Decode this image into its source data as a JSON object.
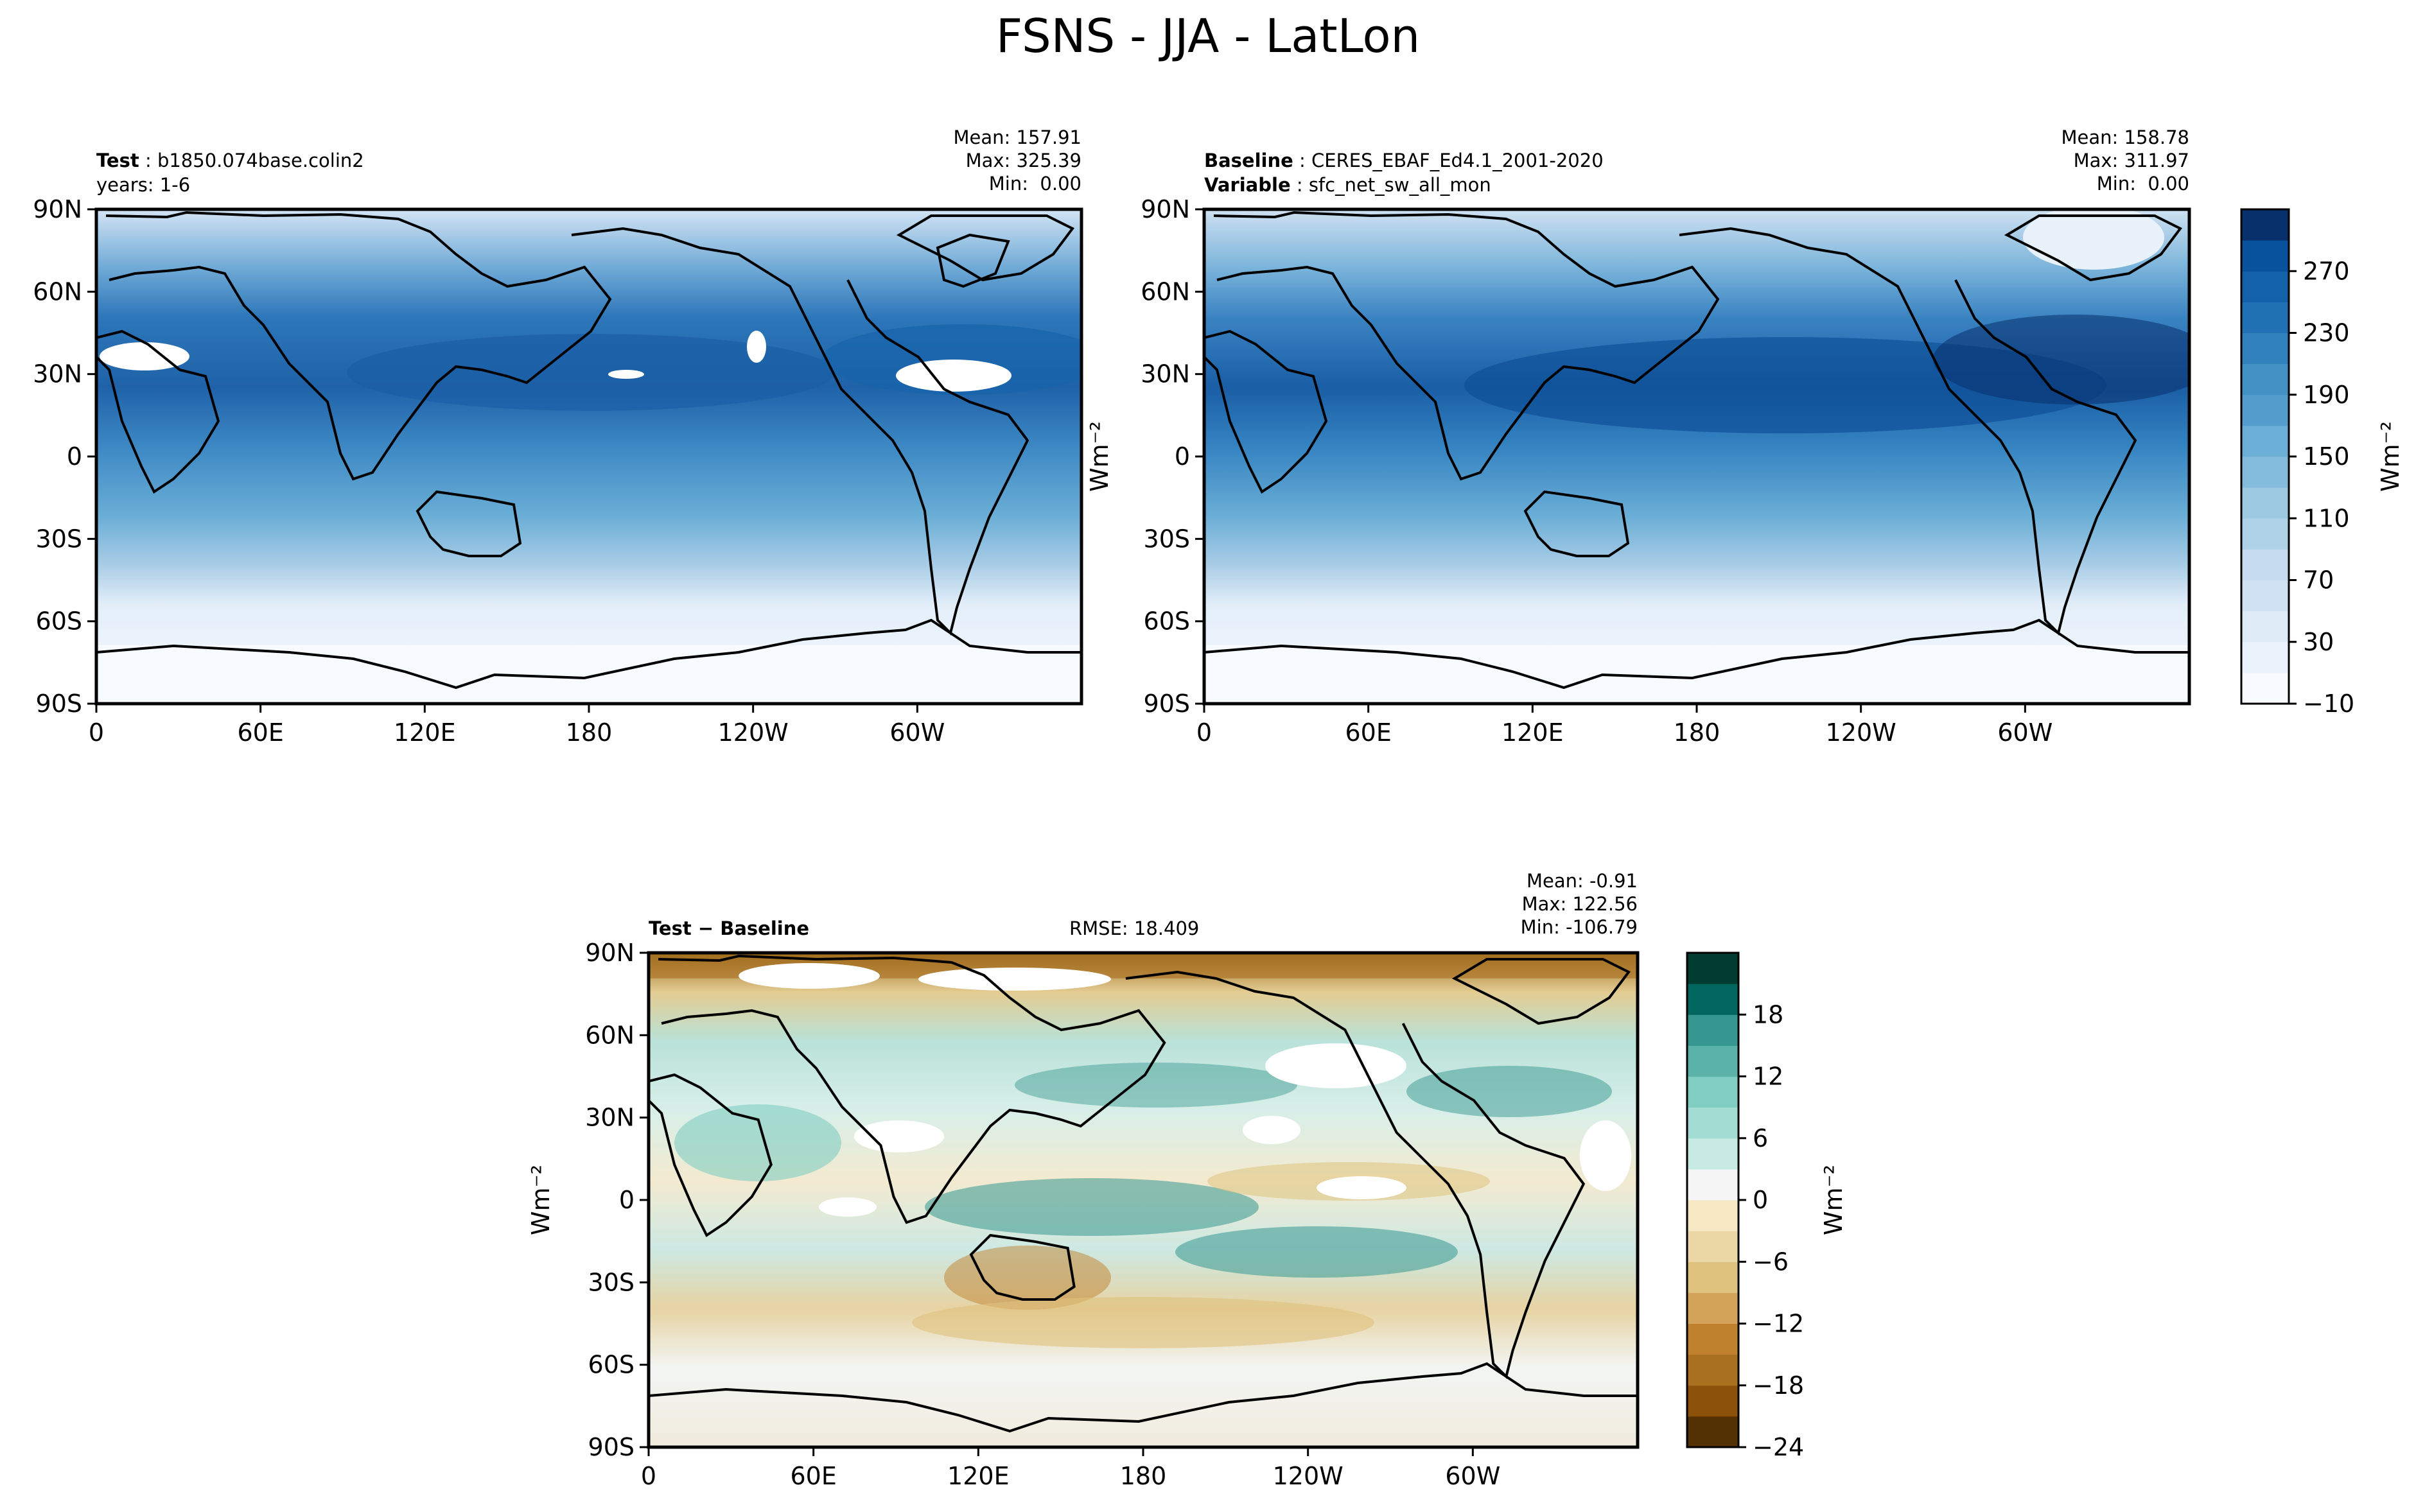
{
  "figure": {
    "title": "FSNS - JJA - LatLon"
  },
  "panels": {
    "test": {
      "label_bold": "Test",
      "label_value": "b1850.074base.colin2",
      "line2": "years: 1-6",
      "stats": [
        "Mean: 157.91",
        "Max: 325.39",
        "Min:  0.00"
      ]
    },
    "baseline": {
      "label_bold": "Baseline",
      "label_value": "CERES_EBAF_Ed4.1_2001-2020",
      "line2_bold": "Variable",
      "line2_value": "sfc_net_sw_all_mon",
      "stats": [
        "Mean: 158.78",
        "Max: 311.97",
        "Min:  0.00"
      ]
    },
    "diff": {
      "label": "Test − Baseline",
      "rmse": "RMSE: 18.409",
      "stats": [
        "Mean: -0.91",
        "Max: 122.56",
        "Min: -106.79"
      ]
    }
  },
  "chart_data": [
    {
      "type": "heatmap",
      "panel": "test",
      "x_ticks": [
        "0",
        "60E",
        "120E",
        "180",
        "120W",
        "60W"
      ],
      "y_ticks": [
        "90N",
        "60N",
        "30N",
        "0",
        "30S",
        "60S",
        "90S"
      ],
      "xlim": [
        0,
        360
      ],
      "ylim": [
        -90,
        90
      ],
      "projection": "PlateCarree, central longitude 180",
      "mean": 157.91,
      "max": 325.39,
      "min": 0.0,
      "colormap": "Blues"
    },
    {
      "type": "heatmap",
      "panel": "baseline",
      "x_ticks": [
        "0",
        "60E",
        "120E",
        "180",
        "120W",
        "60W"
      ],
      "y_ticks": [
        "90N",
        "60N",
        "30N",
        "0",
        "30S",
        "60S",
        "90S"
      ],
      "xlim": [
        0,
        360
      ],
      "ylim": [
        -90,
        90
      ],
      "mean": 158.78,
      "max": 311.97,
      "min": 0.0,
      "colormap": "Blues",
      "colorbar": {
        "label": "Wm⁻²",
        "ticks": [
          "270",
          "230",
          "190",
          "150",
          "110",
          "70",
          "30",
          "−10"
        ],
        "levels": [
          -10,
          10,
          30,
          50,
          70,
          90,
          110,
          130,
          150,
          170,
          190,
          210,
          230,
          250,
          270,
          290
        ]
      }
    },
    {
      "type": "heatmap",
      "panel": "diff",
      "x_ticks": [
        "0",
        "60E",
        "120E",
        "180",
        "120W",
        "60W"
      ],
      "y_ticks": [
        "90N",
        "60N",
        "30N",
        "0",
        "30S",
        "60S",
        "90S"
      ],
      "xlim": [
        0,
        360
      ],
      "ylim": [
        -90,
        90
      ],
      "mean": -0.91,
      "max": 122.56,
      "min": -106.79,
      "rmse": 18.409,
      "colormap": "BrBG",
      "ylabel": "Wm⁻²",
      "colorbar": {
        "label": "Wm⁻²",
        "ticks": [
          "18",
          "12",
          "6",
          "0",
          "−6",
          "−12",
          "−18",
          "−24"
        ],
        "levels": [
          -24,
          -21,
          -18,
          -15,
          -12,
          -9,
          -6,
          -3,
          0,
          3,
          6,
          9,
          12,
          15,
          18,
          21
        ]
      }
    }
  ],
  "colors": {
    "blues": [
      "#f7fbff",
      "#e3eef9",
      "#d0e1f2",
      "#b7d4ea",
      "#94c4df",
      "#6aaed6",
      "#4a98c9",
      "#2e7ebc",
      "#1764ab",
      "#084a91",
      "#08306b"
    ],
    "brbg_neg": [
      "#543005",
      "#8c510a",
      "#bf812d",
      "#dfc27d",
      "#f6e8c3"
    ],
    "brbg_pos": [
      "#c7eae5",
      "#80cdc1",
      "#35978f",
      "#01665e",
      "#003c30"
    ],
    "coast": "#000000"
  }
}
